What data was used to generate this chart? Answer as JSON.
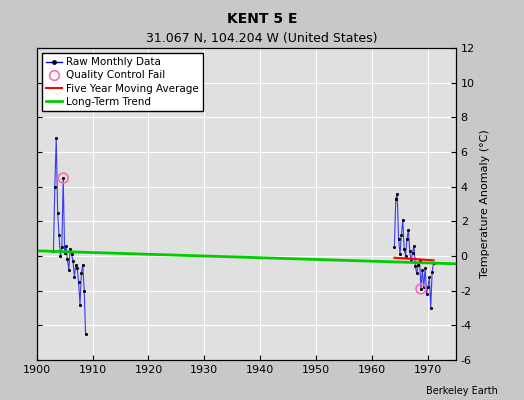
{
  "title": "KENT 5 E",
  "subtitle": "31.067 N, 104.204 W (United States)",
  "ylabel": "Temperature Anomaly (°C)",
  "attribution": "Berkeley Earth",
  "xlim": [
    1900,
    1975
  ],
  "ylim": [
    -6,
    12
  ],
  "yticks": [
    -6,
    -4,
    -2,
    0,
    2,
    4,
    6,
    8,
    10,
    12
  ],
  "xticks": [
    1900,
    1910,
    1920,
    1930,
    1940,
    1950,
    1960,
    1970
  ],
  "background_color": "#c8c8c8",
  "plot_background": "#e0e0e0",
  "grid_color": "#ffffff",
  "group1_years": [
    1903.0,
    1903.25,
    1903.5,
    1903.75,
    1904.0,
    1904.25,
    1904.5,
    1904.75,
    1905.0,
    1905.25,
    1905.5,
    1905.75,
    1906.0,
    1906.25,
    1906.5,
    1906.75,
    1907.0,
    1907.25,
    1907.5,
    1907.75,
    1908.0,
    1908.25,
    1908.5,
    1908.75
  ],
  "group1_values": [
    0.3,
    4.0,
    6.8,
    2.5,
    1.2,
    0.0,
    0.5,
    4.5,
    0.2,
    0.6,
    -0.2,
    -0.8,
    0.4,
    0.1,
    -0.3,
    -1.2,
    -0.5,
    -0.7,
    -1.5,
    -2.8,
    -1.0,
    -0.5,
    -2.0,
    -4.5
  ],
  "group1_qc_years": [
    1904.75
  ],
  "group1_qc_values": [
    4.5
  ],
  "group2_years": [
    1964.0,
    1964.25,
    1964.5,
    1964.75,
    1965.0,
    1965.25,
    1965.5,
    1965.75,
    1966.0,
    1966.25,
    1966.5,
    1966.75,
    1967.0,
    1967.25,
    1967.5,
    1967.75,
    1968.0,
    1968.25,
    1968.5,
    1968.75,
    1969.0,
    1969.25,
    1969.5,
    1969.75,
    1970.0,
    1970.25,
    1970.5,
    1970.75,
    1971.0
  ],
  "group2_values": [
    0.5,
    3.3,
    3.6,
    1.0,
    0.1,
    1.2,
    2.1,
    0.4,
    0.0,
    1.0,
    1.5,
    0.3,
    -0.3,
    0.2,
    0.6,
    -0.6,
    -1.0,
    -0.5,
    -0.3,
    -1.9,
    -0.8,
    -1.8,
    -0.7,
    -2.2,
    -1.8,
    -1.2,
    -3.0,
    -0.9,
    -0.4
  ],
  "group2_qc_years": [
    1968.75
  ],
  "group2_qc_values": [
    -1.9
  ],
  "red_x": [
    1964.0,
    1971.0
  ],
  "red_y": [
    -0.1,
    -0.25
  ],
  "trend_x": [
    1900.0,
    1975.0
  ],
  "trend_y": [
    0.3,
    -0.45
  ],
  "line_color": "#0000ff",
  "dot_color": "#000000",
  "qc_color": "#ff69b4",
  "ma_color": "#ff0000",
  "trend_color": "#00cc00",
  "title_fontsize": 10,
  "subtitle_fontsize": 9,
  "tick_fontsize": 8,
  "legend_fontsize": 7.5,
  "ylabel_fontsize": 8
}
